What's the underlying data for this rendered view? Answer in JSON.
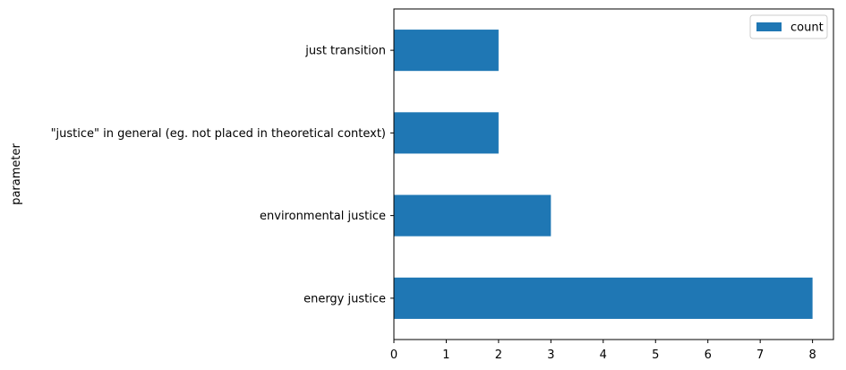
{
  "chart_data": {
    "type": "bar",
    "orientation": "horizontal",
    "categories": [
      "energy justice",
      "environmental justice",
      "\"justice\" in general (eg. not placed in theoretical context)",
      "just transition"
    ],
    "series": [
      {
        "name": "count",
        "values": [
          8,
          3,
          2,
          2
        ],
        "color": "#1f77b4"
      }
    ],
    "ylabel": "parameter",
    "xlabel": "",
    "xlim": [
      0,
      8.4
    ],
    "xticks": [
      0,
      1,
      2,
      3,
      4,
      5,
      6,
      7,
      8
    ],
    "legend": {
      "position": "top-right",
      "entries": [
        "count"
      ]
    },
    "grid": false
  }
}
